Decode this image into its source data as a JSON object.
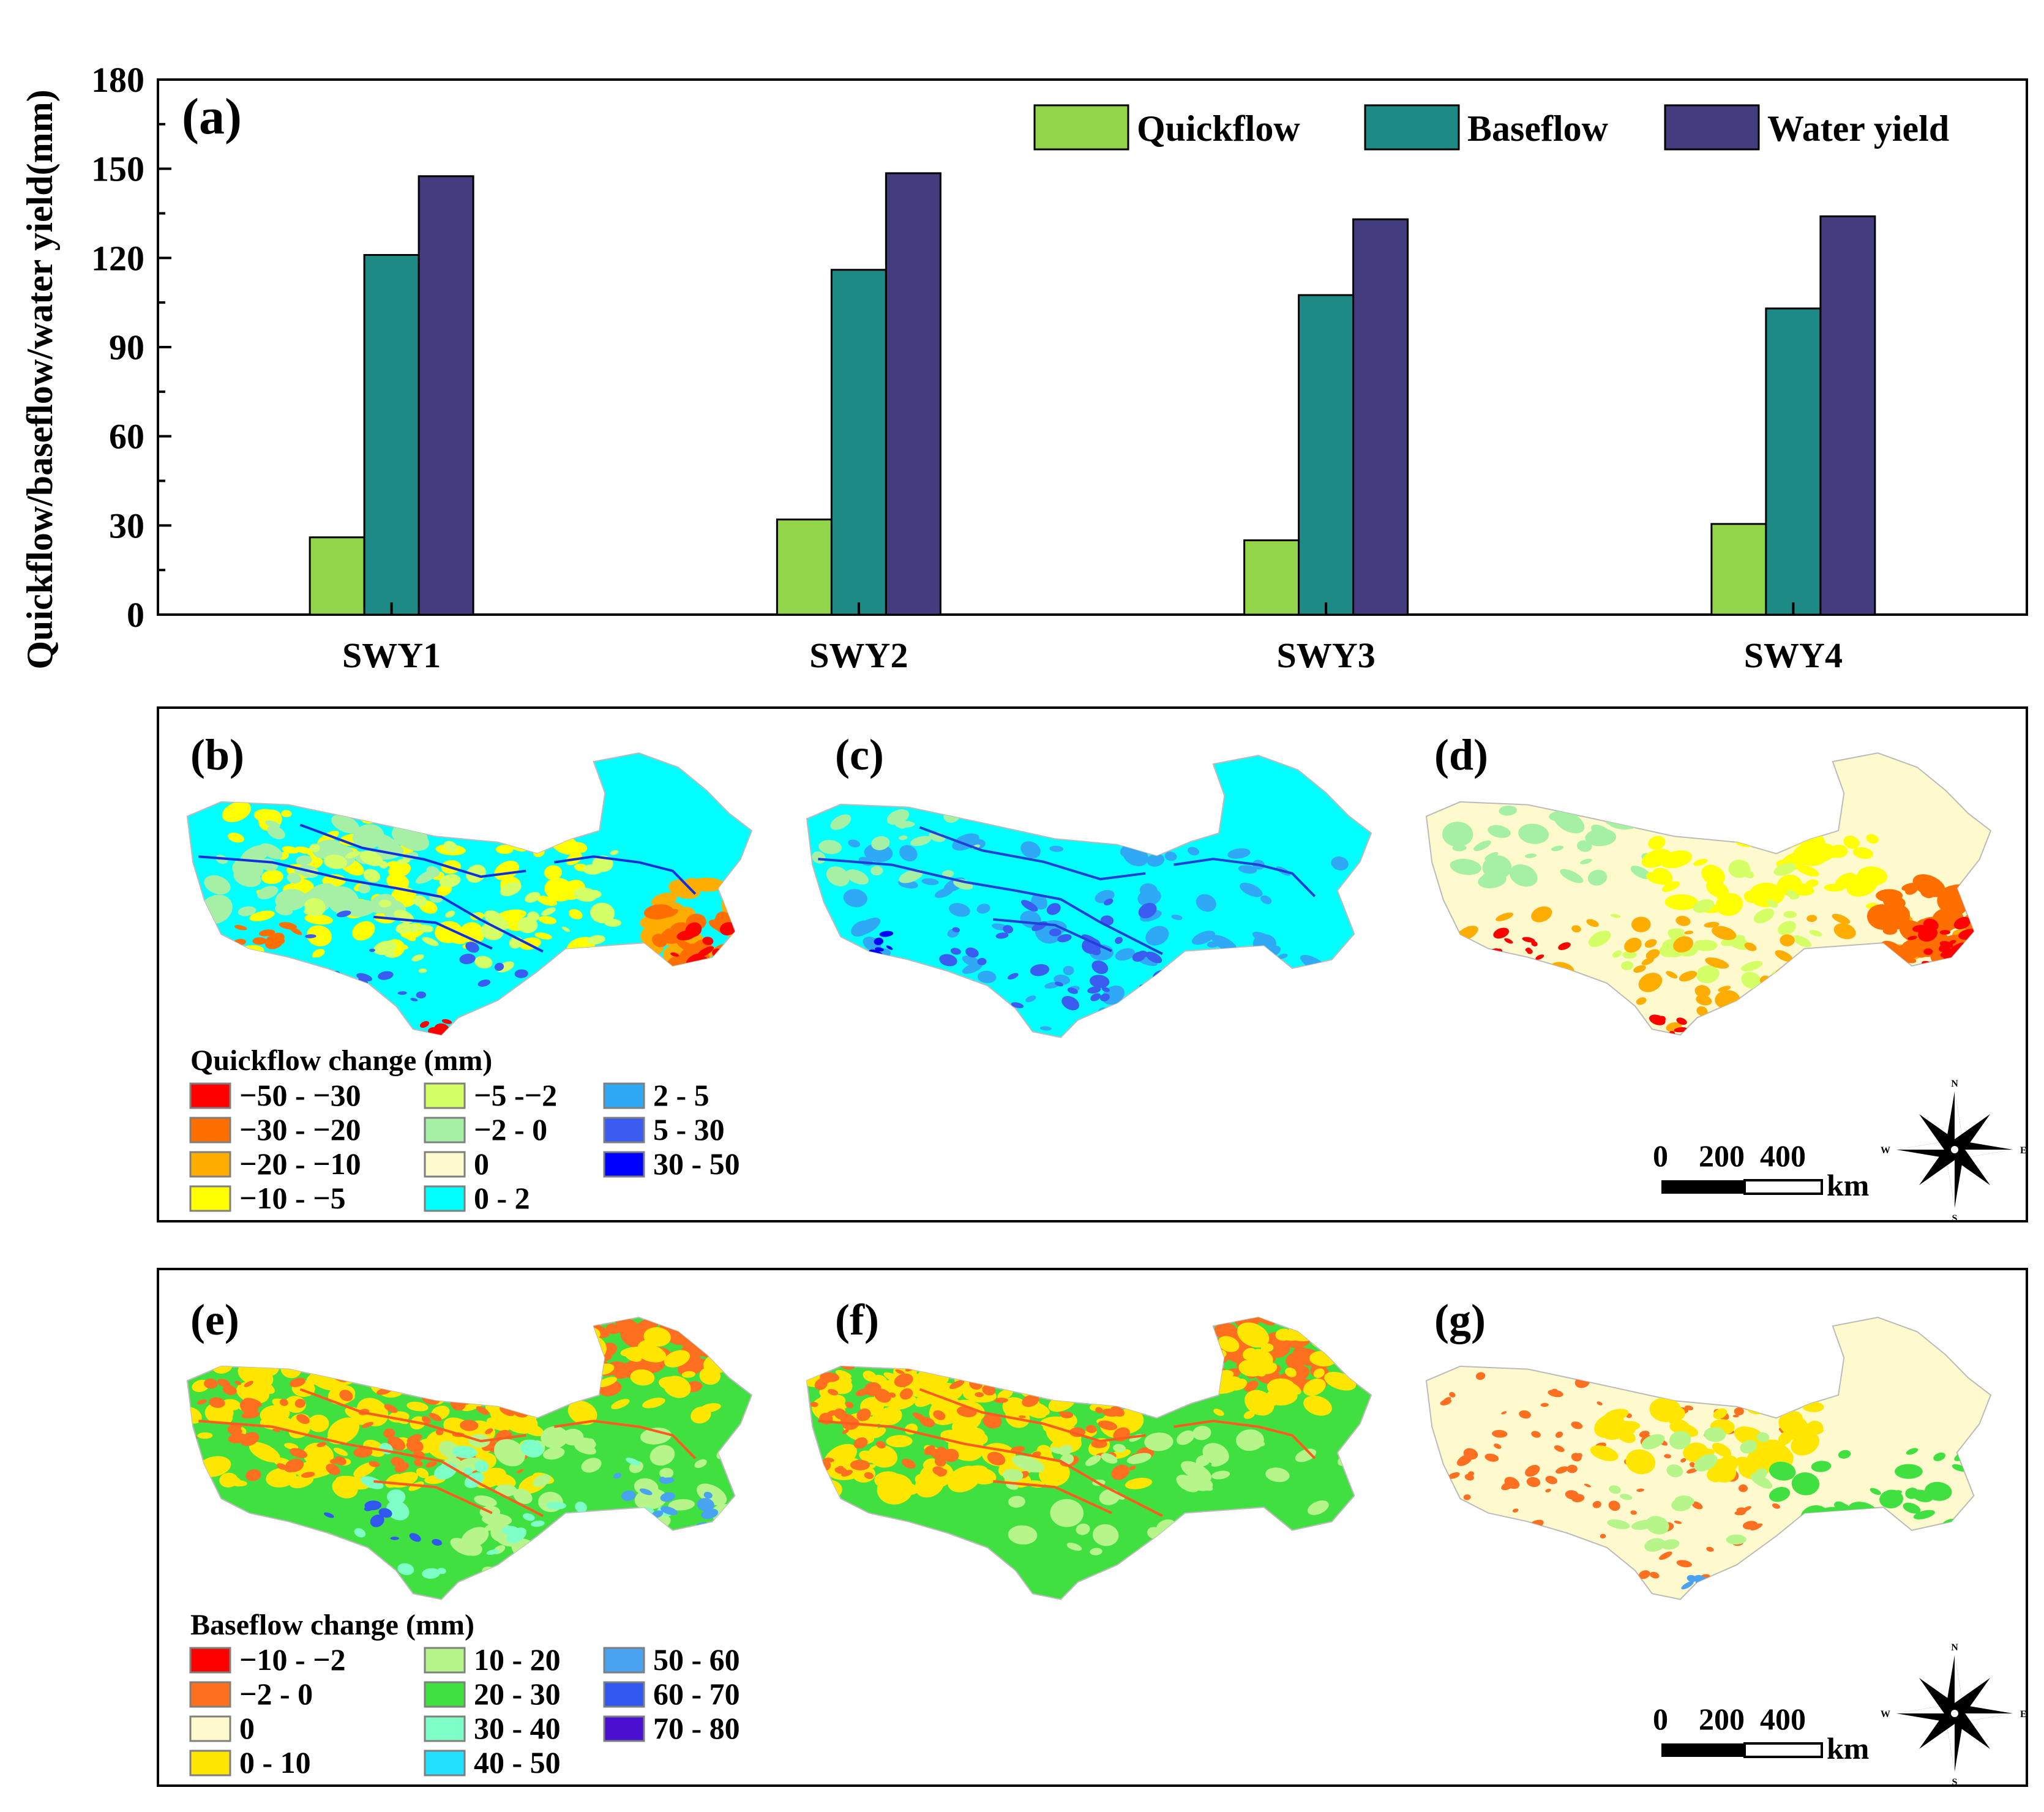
{
  "chart_data": {
    "type": "bar",
    "panel_label": "(a)",
    "title": "",
    "xlabel": "",
    "ylabel": "Quickflow/baseflow/water yield(mm)",
    "ylim": [
      0,
      180
    ],
    "yticks": [
      "0",
      "30",
      "60",
      "90",
      "120",
      "150",
      "180"
    ],
    "categories": [
      "SWY1",
      "SWY2",
      "SWY3",
      "SWY4"
    ],
    "legend_position": "top-right",
    "series": [
      {
        "name": "Quickflow",
        "color": "#92d548",
        "values": [
          26,
          32,
          25,
          30.5
        ]
      },
      {
        "name": "Baseflow",
        "color": "#1e8a86",
        "values": [
          121,
          116,
          107.5,
          103
        ]
      },
      {
        "name": "Water yield",
        "color": "#433d7f",
        "values": [
          147.5,
          148.5,
          133,
          134
        ]
      }
    ]
  },
  "quickflow_panels": {
    "labels": [
      "(b)",
      "(c)",
      "(d)"
    ],
    "legend_title": "Quickflow change (mm)",
    "legend": [
      {
        "label": "−50 - −30",
        "color": "#ff0000"
      },
      {
        "label": "−30 - −20",
        "color": "#ff6f00"
      },
      {
        "label": "−20 - −10",
        "color": "#ffad00"
      },
      {
        "label": "−10 - −5",
        "color": "#ffff00"
      },
      {
        "label": "−5 -−2",
        "color": "#d4ff66"
      },
      {
        "label": "−2 - 0",
        "color": "#a6f0a6"
      },
      {
        "label": "0",
        "color": "#fffacd"
      },
      {
        "label": "0 - 2",
        "color": "#00ffff"
      },
      {
        "label": "2 - 5",
        "color": "#2fa8f5"
      },
      {
        "label": "5 - 30",
        "color": "#3a5cf0"
      },
      {
        "label": "30 - 50",
        "color": "#0000ff"
      }
    ],
    "scale_text": "0    200  400",
    "scale_unit": "km",
    "compass": {
      "n": "N",
      "s": "S",
      "e": "E",
      "w": "W"
    }
  },
  "baseflow_panels": {
    "labels": [
      "(e)",
      "(f)",
      "(g)"
    ],
    "legend_title": "Baseflow change (mm)",
    "legend": [
      {
        "label": "−10 - −2",
        "color": "#ff0000"
      },
      {
        "label": "−2 - 0",
        "color": "#ff6f20"
      },
      {
        "label": "0",
        "color": "#fffacd"
      },
      {
        "label": "0 - 10",
        "color": "#ffe600"
      },
      {
        "label": "10 - 20",
        "color": "#b6f58a"
      },
      {
        "label": "20 - 30",
        "color": "#40e040"
      },
      {
        "label": "30 - 40",
        "color": "#7fffc8"
      },
      {
        "label": "40 - 50",
        "color": "#22e0ff"
      },
      {
        "label": "50 - 60",
        "color": "#4aa3f0"
      },
      {
        "label": "60 - 70",
        "color": "#3058f0"
      },
      {
        "label": "70 - 80",
        "color": "#4a10d0"
      }
    ],
    "scale_text": "0    200  400",
    "scale_unit": "km",
    "compass": {
      "n": "N",
      "s": "S",
      "e": "E",
      "w": "W"
    }
  }
}
